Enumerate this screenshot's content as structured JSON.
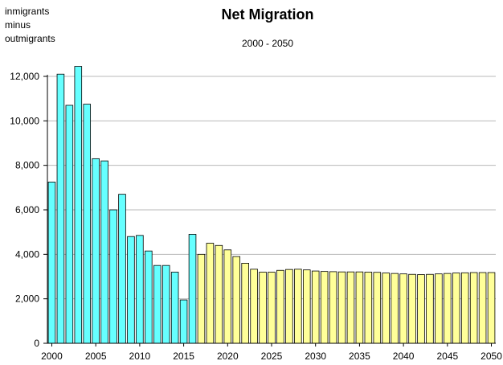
{
  "chart_data": {
    "type": "bar",
    "title": "Net Migration",
    "subtitle": "2000 - 2050",
    "ylabel_lines": [
      "inmigrants",
      "minus",
      "outmigrants"
    ],
    "xlabel": "",
    "ylim": [
      0,
      12000
    ],
    "yticks": [
      "0",
      "2,000",
      "4,000",
      "6,000",
      "8,000",
      "10,000",
      "12,000"
    ],
    "ytick_values": [
      0,
      2000,
      4000,
      6000,
      8000,
      10000,
      12000
    ],
    "xticks": [
      "2000",
      "2005",
      "2010",
      "2015",
      "2020",
      "2025",
      "2030",
      "2035",
      "2040",
      "2045",
      "2050"
    ],
    "grid": true,
    "x": [
      2000,
      2001,
      2002,
      2003,
      2004,
      2005,
      2006,
      2007,
      2008,
      2009,
      2010,
      2011,
      2012,
      2013,
      2014,
      2015,
      2016,
      2017,
      2018,
      2019,
      2020,
      2021,
      2022,
      2023,
      2024,
      2025,
      2026,
      2027,
      2028,
      2029,
      2030,
      2031,
      2032,
      2033,
      2034,
      2035,
      2036,
      2037,
      2038,
      2039,
      2040,
      2041,
      2042,
      2043,
      2044,
      2045,
      2046,
      2047,
      2048,
      2049,
      2050
    ],
    "series": [
      {
        "color": "#66FFFF",
        "x": [
          2000,
          2001,
          2002,
          2003,
          2004,
          2005,
          2006,
          2007,
          2008,
          2009,
          2010,
          2011,
          2012,
          2013,
          2014,
          2015,
          2016
        ],
        "values": [
          7250,
          12100,
          10700,
          12450,
          10750,
          8300,
          8200,
          6000,
          6700,
          4800,
          4850,
          4150,
          3500,
          3500,
          3200,
          1950,
          4900
        ]
      },
      {
        "color": "#FFFF99",
        "x": [
          2017,
          2018,
          2019,
          2020,
          2021,
          2022,
          2023,
          2024,
          2025,
          2026,
          2027,
          2028,
          2029,
          2030,
          2031,
          2032,
          2033,
          2034,
          2035,
          2036,
          2037,
          2038,
          2039,
          2040,
          2041,
          2042,
          2043,
          2044,
          2045,
          2046,
          2047,
          2048,
          2049,
          2050
        ],
        "values": [
          4000,
          4500,
          4400,
          4200,
          3900,
          3600,
          3330,
          3200,
          3200,
          3280,
          3320,
          3330,
          3300,
          3250,
          3230,
          3220,
          3210,
          3210,
          3210,
          3200,
          3190,
          3160,
          3140,
          3120,
          3100,
          3090,
          3100,
          3120,
          3140,
          3160,
          3170,
          3180,
          3180,
          3180
        ]
      }
    ]
  }
}
